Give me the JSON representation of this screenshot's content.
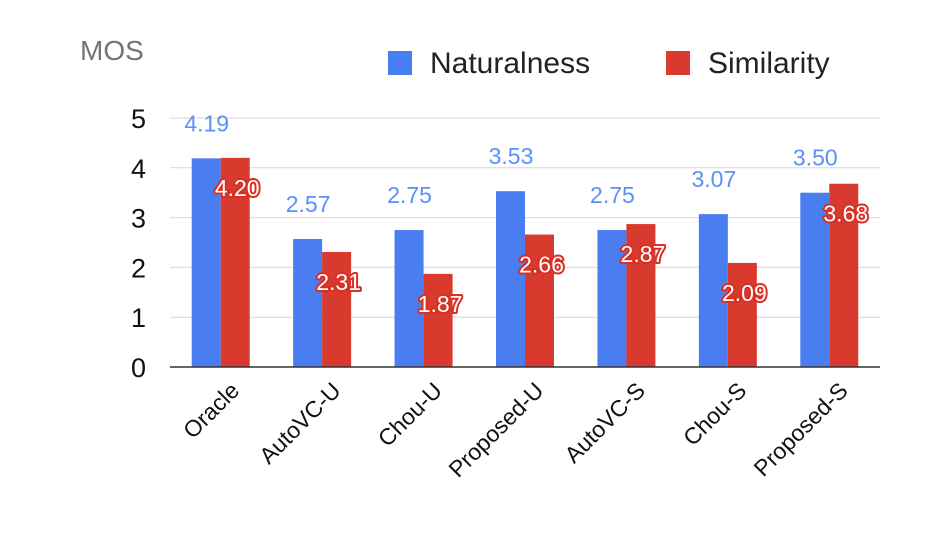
{
  "chart_data": {
    "type": "bar",
    "title": "",
    "ylabel": "MOS",
    "xlabel": "",
    "ylim": [
      0,
      5
    ],
    "yticks": [
      0,
      1,
      2,
      3,
      4,
      5
    ],
    "grid": true,
    "legend_position": "top-right",
    "categories": [
      "Oracle",
      "AutoVC-U",
      "Chou-U",
      "Proposed-U",
      "AutoVC-S",
      "Chou-S",
      "Proposed-S"
    ],
    "series": [
      {
        "name": "Naturalness",
        "color": "#4a7ef0",
        "values": [
          4.19,
          2.57,
          2.75,
          3.53,
          2.75,
          3.07,
          3.5
        ],
        "labels": [
          "4.19",
          "2.57",
          "2.75",
          "3.53",
          "2.75",
          "3.07",
          "3.50"
        ]
      },
      {
        "name": "Similarity",
        "color": "#d93a2e",
        "values": [
          4.2,
          2.31,
          1.87,
          2.66,
          2.87,
          2.09,
          3.68
        ],
        "labels": [
          "4.20",
          "2.31",
          "1.87",
          "2.66",
          "2.87",
          "2.09",
          "3.68"
        ]
      }
    ]
  }
}
